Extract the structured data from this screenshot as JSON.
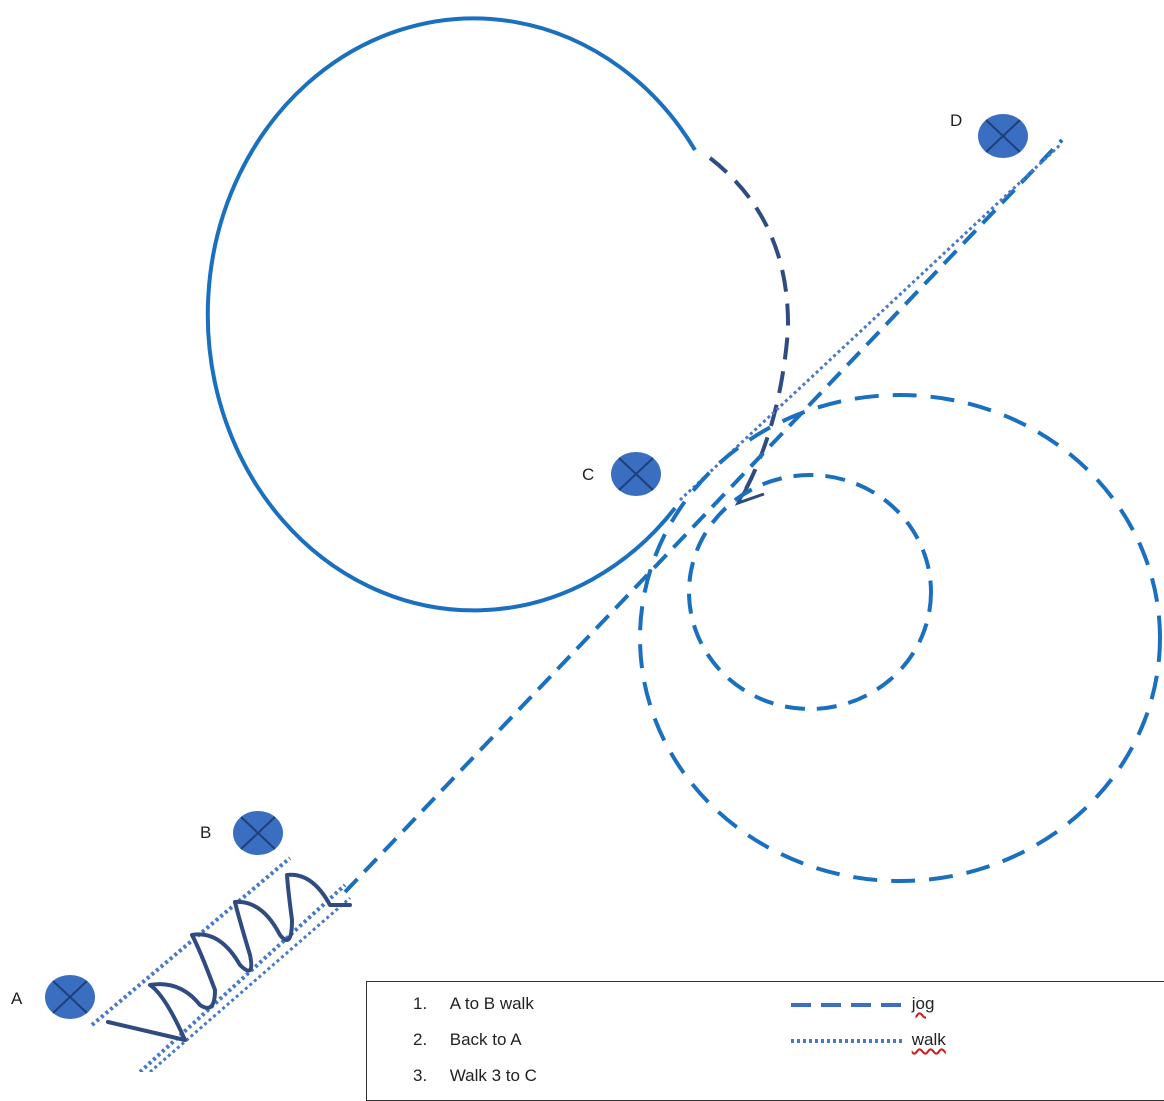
{
  "markers": [
    {
      "id": "A",
      "label": "A"
    },
    {
      "id": "B",
      "label": "B"
    },
    {
      "id": "C",
      "label": "C"
    },
    {
      "id": "D",
      "label": "D"
    }
  ],
  "legend": {
    "items": [
      {
        "number": "1.",
        "text": "A to B walk"
      },
      {
        "number": "2.",
        "text": "Back to A"
      },
      {
        "number": "3.",
        "text": "Walk 3 to C"
      }
    ],
    "keys": [
      {
        "style": "dashed",
        "label": "jog"
      },
      {
        "style": "dotted",
        "label": "walk"
      }
    ]
  },
  "colors": {
    "marker_fill": "#3a6ec0",
    "path_blue": "#1a70bf",
    "path_dark": "#2f4b80",
    "dotted": "#4a78c8",
    "spellcheck": "#d11a1a"
  }
}
